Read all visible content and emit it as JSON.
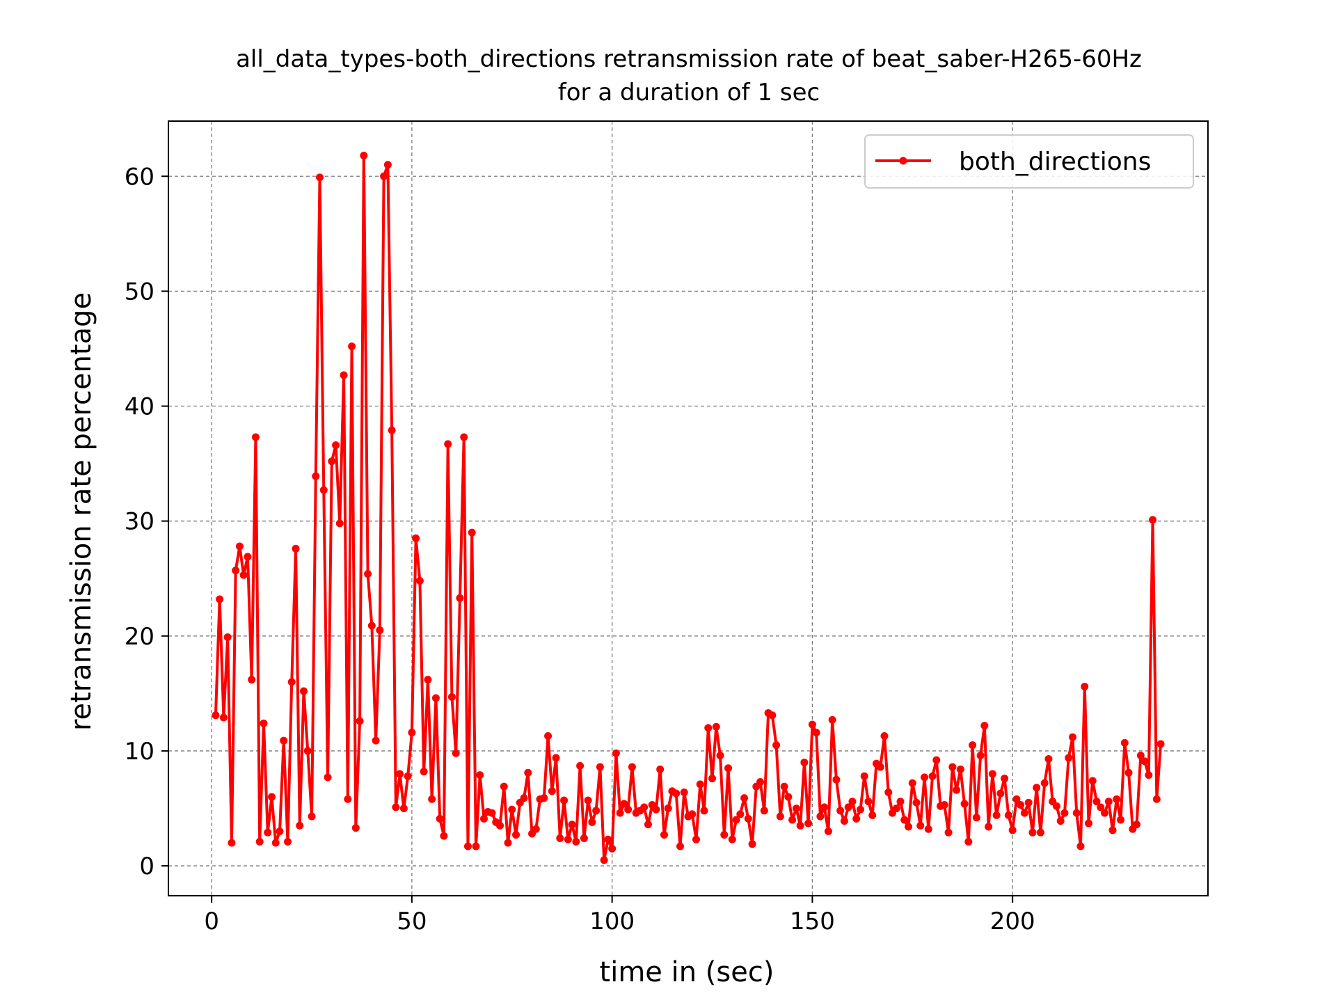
{
  "chart_data": {
    "type": "line",
    "title_line1": "all_data_types-both_directions retransmission rate of beat_saber-H265-60Hz",
    "title_line2": "for a duration of 1 sec",
    "xlabel": "time in (sec)",
    "ylabel": "retransmission rate percentage",
    "xlim": [
      -10.8,
      248.8
    ],
    "ylim": [
      -2.6,
      64.8
    ],
    "x_ticks": [
      0,
      50,
      100,
      150,
      200
    ],
    "y_ticks": [
      0,
      10,
      20,
      30,
      40,
      50,
      60
    ],
    "grid": true,
    "legend_position": "top-right",
    "series": [
      {
        "name": "both_directions",
        "color": "#ff0000",
        "marker": "circle",
        "x": [
          1,
          2,
          3,
          4,
          5,
          6,
          7,
          8,
          9,
          10,
          11,
          12,
          13,
          14,
          15,
          16,
          17,
          18,
          19,
          20,
          21,
          22,
          23,
          24,
          25,
          26,
          27,
          28,
          29,
          30,
          31,
          32,
          33,
          34,
          35,
          36,
          37,
          38,
          39,
          40,
          41,
          42,
          43,
          44,
          45,
          46,
          47,
          48,
          49,
          50,
          51,
          52,
          53,
          54,
          55,
          56,
          57,
          58,
          59,
          60,
          61,
          62,
          63,
          64,
          65,
          66,
          67,
          68,
          69,
          70,
          71,
          72,
          73,
          74,
          75,
          76,
          77,
          78,
          79,
          80,
          81,
          82,
          83,
          84,
          85,
          86,
          87,
          88,
          89,
          90,
          91,
          92,
          93,
          94,
          95,
          96,
          97,
          98,
          99,
          100,
          101,
          102,
          103,
          104,
          105,
          106,
          107,
          108,
          109,
          110,
          111,
          112,
          113,
          114,
          115,
          116,
          117,
          118,
          119,
          120,
          121,
          122,
          123,
          124,
          125,
          126,
          127,
          128,
          129,
          130,
          131,
          132,
          133,
          134,
          135,
          136,
          137,
          138,
          139,
          140,
          141,
          142,
          143,
          144,
          145,
          146,
          147,
          148,
          149,
          150,
          151,
          152,
          153,
          154,
          155,
          156,
          157,
          158,
          159,
          160,
          161,
          162,
          163,
          164,
          165,
          166,
          167,
          168,
          169,
          170,
          171,
          172,
          173,
          174,
          175,
          176,
          177,
          178,
          179,
          180,
          181,
          182,
          183,
          184,
          185,
          186,
          187,
          188,
          189,
          190,
          191,
          192,
          193,
          194,
          195,
          196,
          197,
          198,
          199,
          200,
          201,
          202,
          203,
          204,
          205,
          206,
          207,
          208,
          209,
          210,
          211,
          212,
          213,
          214,
          215,
          216,
          217,
          218,
          219,
          220,
          221,
          222,
          223,
          224,
          225,
          226,
          227,
          228,
          229,
          230,
          231,
          232,
          233,
          234,
          235,
          236,
          237
        ],
        "y": [
          13.1,
          23.2,
          12.9,
          19.9,
          2.0,
          25.7,
          27.8,
          25.3,
          26.9,
          16.2,
          37.3,
          2.1,
          12.4,
          2.9,
          6.0,
          2.0,
          3.0,
          10.9,
          2.1,
          16.0,
          27.6,
          3.5,
          15.2,
          10.0,
          4.3,
          33.9,
          59.9,
          32.7,
          7.7,
          35.2,
          36.6,
          29.8,
          42.7,
          5.8,
          45.2,
          3.3,
          12.6,
          61.8,
          25.4,
          20.9,
          10.9,
          20.5,
          60.0,
          61.0,
          37.9,
          5.1,
          8.0,
          5.0,
          7.8,
          11.6,
          28.5,
          24.8,
          8.2,
          16.2,
          5.8,
          14.6,
          4.1,
          2.6,
          36.7,
          14.7,
          9.8,
          23.3,
          37.3,
          1.7,
          29.0,
          1.7,
          7.9,
          4.1,
          4.7,
          4.6,
          3.8,
          3.5,
          6.9,
          2.0,
          4.9,
          2.7,
          5.5,
          5.9,
          8.1,
          2.8,
          3.2,
          5.8,
          5.9,
          11.3,
          6.5,
          9.4,
          2.4,
          5.7,
          2.3,
          3.6,
          2.1,
          8.7,
          2.4,
          5.7,
          3.8,
          4.8,
          8.6,
          0.5,
          2.3,
          1.5,
          9.8,
          4.6,
          5.4,
          4.9,
          8.6,
          4.6,
          4.8,
          5.1,
          3.6,
          5.3,
          4.9,
          8.4,
          2.7,
          5.0,
          6.5,
          6.3,
          1.7,
          6.4,
          4.3,
          4.5,
          2.3,
          7.1,
          4.8,
          12.0,
          7.6,
          12.1,
          9.6,
          2.7,
          8.5,
          2.3,
          4.0,
          4.5,
          5.9,
          4.1,
          1.9,
          6.9,
          7.3,
          4.8,
          13.3,
          13.1,
          10.5,
          4.3,
          6.9,
          6.0,
          4.0,
          5.0,
          3.5,
          9.0,
          3.7,
          12.3,
          11.6,
          4.3,
          5.1,
          3.0,
          12.7,
          7.5,
          4.8,
          3.9,
          5.1,
          5.6,
          4.1,
          4.9,
          7.8,
          5.6,
          4.4,
          8.9,
          8.6,
          11.3,
          6.4,
          4.6,
          5.0,
          5.6,
          4.0,
          3.4,
          7.2,
          5.5,
          3.5,
          7.7,
          3.2,
          7.8,
          9.2,
          5.2,
          5.3,
          2.9,
          8.6,
          6.6,
          8.4,
          5.4,
          2.1,
          10.5,
          4.2,
          9.6,
          12.2,
          3.4,
          8.0,
          4.4,
          6.3,
          7.6,
          4.4,
          3.1,
          5.8,
          5.3,
          4.6,
          5.5,
          2.9,
          6.8,
          2.9,
          7.2,
          9.3,
          5.6,
          5.2,
          3.9,
          4.6,
          9.4,
          11.2,
          4.6,
          1.7,
          15.6,
          3.7,
          7.4,
          5.6,
          5.1,
          4.6,
          5.6,
          3.1,
          5.8,
          4.0,
          10.7,
          8.1,
          3.2,
          3.6,
          9.6,
          9.1,
          7.9,
          30.1,
          5.8,
          10.6
        ]
      }
    ]
  }
}
